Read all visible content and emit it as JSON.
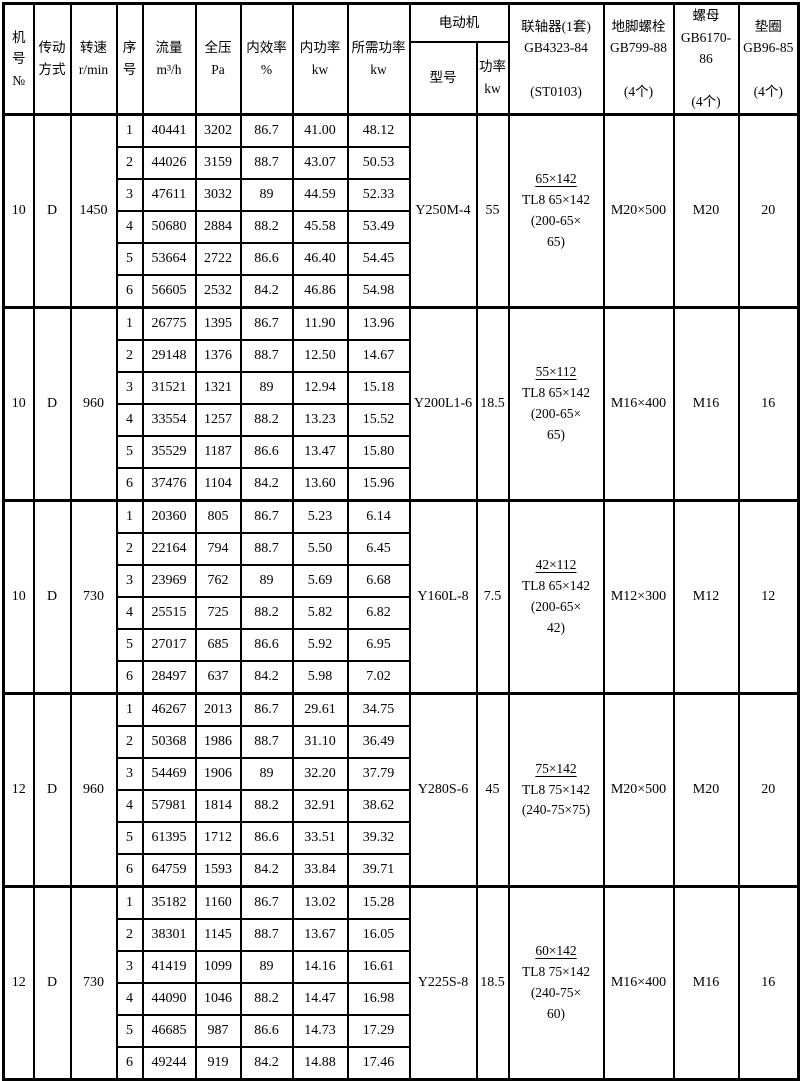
{
  "header": {
    "machine_no": "机号\n№",
    "drive": "传动\n方式",
    "speed": "转速\nr/min",
    "seq": "序\n号",
    "flow": "流量\nm³/h",
    "pressure": "全压\nPa",
    "efficiency": "内效率\n%",
    "internal_power": "内功率\nkw",
    "required_power": "所需功率\nkw",
    "motor": "电动机",
    "motor_model": "型号",
    "motor_power": "功率\nkw",
    "coupling": "联轴器(1套)\nGB4323-84\n\n(ST0103)",
    "anchor_bolt": "地脚螺栓\nGB799-88\n\n(4个)",
    "nut": "螺母\nGB6170-86\n\n(4个)",
    "washer": "垫圈\nGB96-85\n\n(4个)"
  },
  "groups": [
    {
      "machine_no": "10",
      "drive": "D",
      "speed": "1450",
      "rows": [
        {
          "seq": "1",
          "flow": "40441",
          "pressure": "3202",
          "efficiency": "86.7",
          "internal_power": "41.00",
          "required_power": "48.12"
        },
        {
          "seq": "2",
          "flow": "44026",
          "pressure": "3159",
          "efficiency": "88.7",
          "internal_power": "43.07",
          "required_power": "50.53"
        },
        {
          "seq": "3",
          "flow": "47611",
          "pressure": "3032",
          "efficiency": "89",
          "internal_power": "44.59",
          "required_power": "52.33"
        },
        {
          "seq": "4",
          "flow": "50680",
          "pressure": "2884",
          "efficiency": "88.2",
          "internal_power": "45.58",
          "required_power": "53.49"
        },
        {
          "seq": "5",
          "flow": "53664",
          "pressure": "2722",
          "efficiency": "86.6",
          "internal_power": "46.40",
          "required_power": "54.45"
        },
        {
          "seq": "6",
          "flow": "56605",
          "pressure": "2532",
          "efficiency": "84.2",
          "internal_power": "46.86",
          "required_power": "54.98"
        }
      ],
      "motor_model": "Y250M-4",
      "motor_power": "55",
      "coupling": [
        "65×142",
        "TL8 65×142",
        "(200-65×",
        "65)"
      ],
      "anchor_bolt": "M20×500",
      "nut": "M20",
      "washer": "20"
    },
    {
      "machine_no": "10",
      "drive": "D",
      "speed": "960",
      "rows": [
        {
          "seq": "1",
          "flow": "26775",
          "pressure": "1395",
          "efficiency": "86.7",
          "internal_power": "11.90",
          "required_power": "13.96"
        },
        {
          "seq": "2",
          "flow": "29148",
          "pressure": "1376",
          "efficiency": "88.7",
          "internal_power": "12.50",
          "required_power": "14.67"
        },
        {
          "seq": "3",
          "flow": "31521",
          "pressure": "1321",
          "efficiency": "89",
          "internal_power": "12.94",
          "required_power": "15.18"
        },
        {
          "seq": "4",
          "flow": "33554",
          "pressure": "1257",
          "efficiency": "88.2",
          "internal_power": "13.23",
          "required_power": "15.52"
        },
        {
          "seq": "5",
          "flow": "35529",
          "pressure": "1187",
          "efficiency": "86.6",
          "internal_power": "13.47",
          "required_power": "15.80"
        },
        {
          "seq": "6",
          "flow": "37476",
          "pressure": "1104",
          "efficiency": "84.2",
          "internal_power": "13.60",
          "required_power": "15.96"
        }
      ],
      "motor_model": "Y200L1-6",
      "motor_power": "18.5",
      "coupling": [
        "55×112",
        "TL8 65×142",
        "(200-65×",
        "65)"
      ],
      "anchor_bolt": "M16×400",
      "nut": "M16",
      "washer": "16"
    },
    {
      "machine_no": "10",
      "drive": "D",
      "speed": "730",
      "rows": [
        {
          "seq": "1",
          "flow": "20360",
          "pressure": "805",
          "efficiency": "86.7",
          "internal_power": "5.23",
          "required_power": "6.14"
        },
        {
          "seq": "2",
          "flow": "22164",
          "pressure": "794",
          "efficiency": "88.7",
          "internal_power": "5.50",
          "required_power": "6.45"
        },
        {
          "seq": "3",
          "flow": "23969",
          "pressure": "762",
          "efficiency": "89",
          "internal_power": "5.69",
          "required_power": "6.68"
        },
        {
          "seq": "4",
          "flow": "25515",
          "pressure": "725",
          "efficiency": "88.2",
          "internal_power": "5.82",
          "required_power": "6.82"
        },
        {
          "seq": "5",
          "flow": "27017",
          "pressure": "685",
          "efficiency": "86.6",
          "internal_power": "5.92",
          "required_power": "6.95"
        },
        {
          "seq": "6",
          "flow": "28497",
          "pressure": "637",
          "efficiency": "84.2",
          "internal_power": "5.98",
          "required_power": "7.02"
        }
      ],
      "motor_model": "Y160L-8",
      "motor_power": "7.5",
      "coupling": [
        "42×112",
        "TL8 65×142",
        "(200-65×",
        "42)"
      ],
      "anchor_bolt": "M12×300",
      "nut": "M12",
      "washer": "12"
    },
    {
      "machine_no": "12",
      "drive": "D",
      "speed": "960",
      "rows": [
        {
          "seq": "1",
          "flow": "46267",
          "pressure": "2013",
          "efficiency": "86.7",
          "internal_power": "29.61",
          "required_power": "34.75"
        },
        {
          "seq": "2",
          "flow": "50368",
          "pressure": "1986",
          "efficiency": "88.7",
          "internal_power": "31.10",
          "required_power": "36.49"
        },
        {
          "seq": "3",
          "flow": "54469",
          "pressure": "1906",
          "efficiency": "89",
          "internal_power": "32.20",
          "required_power": "37.79"
        },
        {
          "seq": "4",
          "flow": "57981",
          "pressure": "1814",
          "efficiency": "88.2",
          "internal_power": "32.91",
          "required_power": "38.62"
        },
        {
          "seq": "5",
          "flow": "61395",
          "pressure": "1712",
          "efficiency": "86.6",
          "internal_power": "33.51",
          "required_power": "39.32"
        },
        {
          "seq": "6",
          "flow": "64759",
          "pressure": "1593",
          "efficiency": "84.2",
          "internal_power": "33.84",
          "required_power": "39.71"
        }
      ],
      "motor_model": "Y280S-6",
      "motor_power": "45",
      "coupling": [
        "75×142",
        "TL8 75×142",
        "(240-75×75)"
      ],
      "anchor_bolt": "M20×500",
      "nut": "M20",
      "washer": "20"
    },
    {
      "machine_no": "12",
      "drive": "D",
      "speed": "730",
      "rows": [
        {
          "seq": "1",
          "flow": "35182",
          "pressure": "1160",
          "efficiency": "86.7",
          "internal_power": "13.02",
          "required_power": "15.28"
        },
        {
          "seq": "2",
          "flow": "38301",
          "pressure": "1145",
          "efficiency": "88.7",
          "internal_power": "13.67",
          "required_power": "16.05"
        },
        {
          "seq": "3",
          "flow": "41419",
          "pressure": "1099",
          "efficiency": "89",
          "internal_power": "14.16",
          "required_power": "16.61"
        },
        {
          "seq": "4",
          "flow": "44090",
          "pressure": "1046",
          "efficiency": "88.2",
          "internal_power": "14.47",
          "required_power": "16.98"
        },
        {
          "seq": "5",
          "flow": "46685",
          "pressure": "987",
          "efficiency": "86.6",
          "internal_power": "14.73",
          "required_power": "17.29"
        },
        {
          "seq": "6",
          "flow": "49244",
          "pressure": "919",
          "efficiency": "84.2",
          "internal_power": "14.88",
          "required_power": "17.46"
        }
      ],
      "motor_model": "Y225S-8",
      "motor_power": "18.5",
      "coupling": [
        "60×142",
        "TL8 75×142",
        "(240-75×",
        "60)"
      ],
      "anchor_bolt": "M16×400",
      "nut": "M16",
      "washer": "16"
    }
  ]
}
